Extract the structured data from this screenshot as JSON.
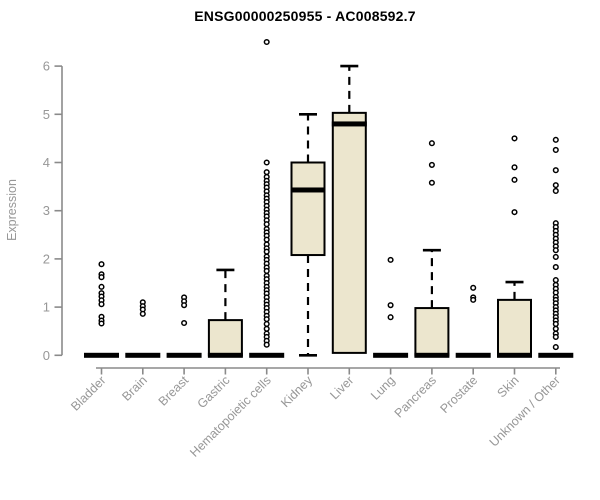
{
  "title": "ENSG00000250955 - AC008592.7",
  "chart_data": {
    "type": "boxplot",
    "title": "ENSG00000250955 - AC008592.7",
    "ylabel": "Expression",
    "ylim": [
      0,
      6.6
    ],
    "yticks": [
      0,
      1,
      2,
      3,
      4,
      5,
      6
    ],
    "grid": false,
    "legend": "none",
    "box_fill_color": "#ece6ce",
    "box_line_color": "#000000",
    "axis_color": "#8a8a8a",
    "label_color": "#979797",
    "categories": [
      "Bladder",
      "Brain",
      "Breast",
      "Gastric",
      "Hematopoietic cells",
      "Kidney",
      "Liver",
      "Lung",
      "Pancreas",
      "Prostate",
      "Skin",
      "Unknown / Other"
    ],
    "series": [
      {
        "category": "Bladder",
        "q1": 0,
        "median": 0,
        "q3": 0,
        "whisker_low": 0,
        "whisker_high": 0,
        "outliers": [
          1.89,
          1.68,
          1.62,
          1.42,
          1.29,
          1.22,
          1.14,
          1.06,
          0.8,
          0.72,
          0.66
        ]
      },
      {
        "category": "Brain",
        "q1": 0,
        "median": 0,
        "q3": 0,
        "whisker_low": 0,
        "whisker_high": 0,
        "outliers": [
          1.1,
          1.02,
          0.95,
          0.86
        ]
      },
      {
        "category": "Breast",
        "q1": 0,
        "median": 0,
        "q3": 0,
        "whisker_low": 0,
        "whisker_high": 0,
        "outliers": [
          1.2,
          1.12,
          1.04,
          0.67
        ]
      },
      {
        "category": "Gastric",
        "q1": 0,
        "median": 0,
        "q3": 0.73,
        "whisker_low": 0,
        "whisker_high": 1.77,
        "outliers": []
      },
      {
        "category": "Hematopoietic cells",
        "q1": 0,
        "median": 0,
        "q3": 0,
        "whisker_low": 0,
        "whisker_high": 0,
        "outliers": [
          6.5,
          4.0,
          3.8,
          3.7,
          3.62,
          3.55,
          3.48,
          3.4,
          3.32,
          3.25,
          3.18,
          3.1,
          3.02,
          2.95,
          2.88,
          2.8,
          2.72,
          2.62,
          2.55,
          2.48,
          2.4,
          2.3,
          2.22,
          2.15,
          2.05,
          1.98,
          1.9,
          1.82,
          1.75,
          1.65,
          1.58,
          1.5,
          1.42,
          1.35,
          1.28,
          1.2,
          1.12,
          1.05,
          0.98,
          0.9,
          0.82,
          0.75,
          0.65,
          0.55,
          0.45,
          0.38,
          0.3,
          0.22
        ]
      },
      {
        "category": "Kidney",
        "q1": 2.08,
        "median": 3.43,
        "q3": 4.0,
        "whisker_low": 0,
        "whisker_high": 5.0,
        "outliers": []
      },
      {
        "category": "Liver",
        "q1": 0.05,
        "median": 4.8,
        "q3": 5.03,
        "whisker_low": 0.05,
        "whisker_high": 6.0,
        "outliers": []
      },
      {
        "category": "Lung",
        "q1": 0,
        "median": 0,
        "q3": 0,
        "whisker_low": 0,
        "whisker_high": 0,
        "outliers": [
          1.98,
          1.04,
          0.79
        ]
      },
      {
        "category": "Pancreas",
        "q1": 0,
        "median": 0,
        "q3": 0.98,
        "whisker_low": 0,
        "whisker_high": 2.18,
        "outliers": [
          4.4,
          3.95,
          3.58
        ]
      },
      {
        "category": "Prostate",
        "q1": 0,
        "median": 0,
        "q3": 0,
        "whisker_low": 0,
        "whisker_high": 0,
        "outliers": [
          1.4,
          1.2,
          1.15
        ]
      },
      {
        "category": "Skin",
        "q1": 0,
        "median": 0,
        "q3": 1.15,
        "whisker_low": 0,
        "whisker_high": 1.52,
        "outliers": [
          4.5,
          3.9,
          3.64,
          2.97
        ]
      },
      {
        "category": "Unknown / Other",
        "q1": 0,
        "median": 0,
        "q3": 0,
        "whisker_low": 0,
        "whisker_high": 0,
        "outliers": [
          4.47,
          4.26,
          3.84,
          3.53,
          3.41,
          2.74,
          2.66,
          2.58,
          2.5,
          2.42,
          2.34,
          2.26,
          2.18,
          2.04,
          1.83,
          1.56,
          1.46,
          1.38,
          1.3,
          1.21,
          1.15,
          1.08,
          1.0,
          0.93,
          0.86,
          0.79,
          0.72,
          0.65,
          0.55,
          0.45,
          0.38,
          0.17
        ]
      }
    ]
  }
}
